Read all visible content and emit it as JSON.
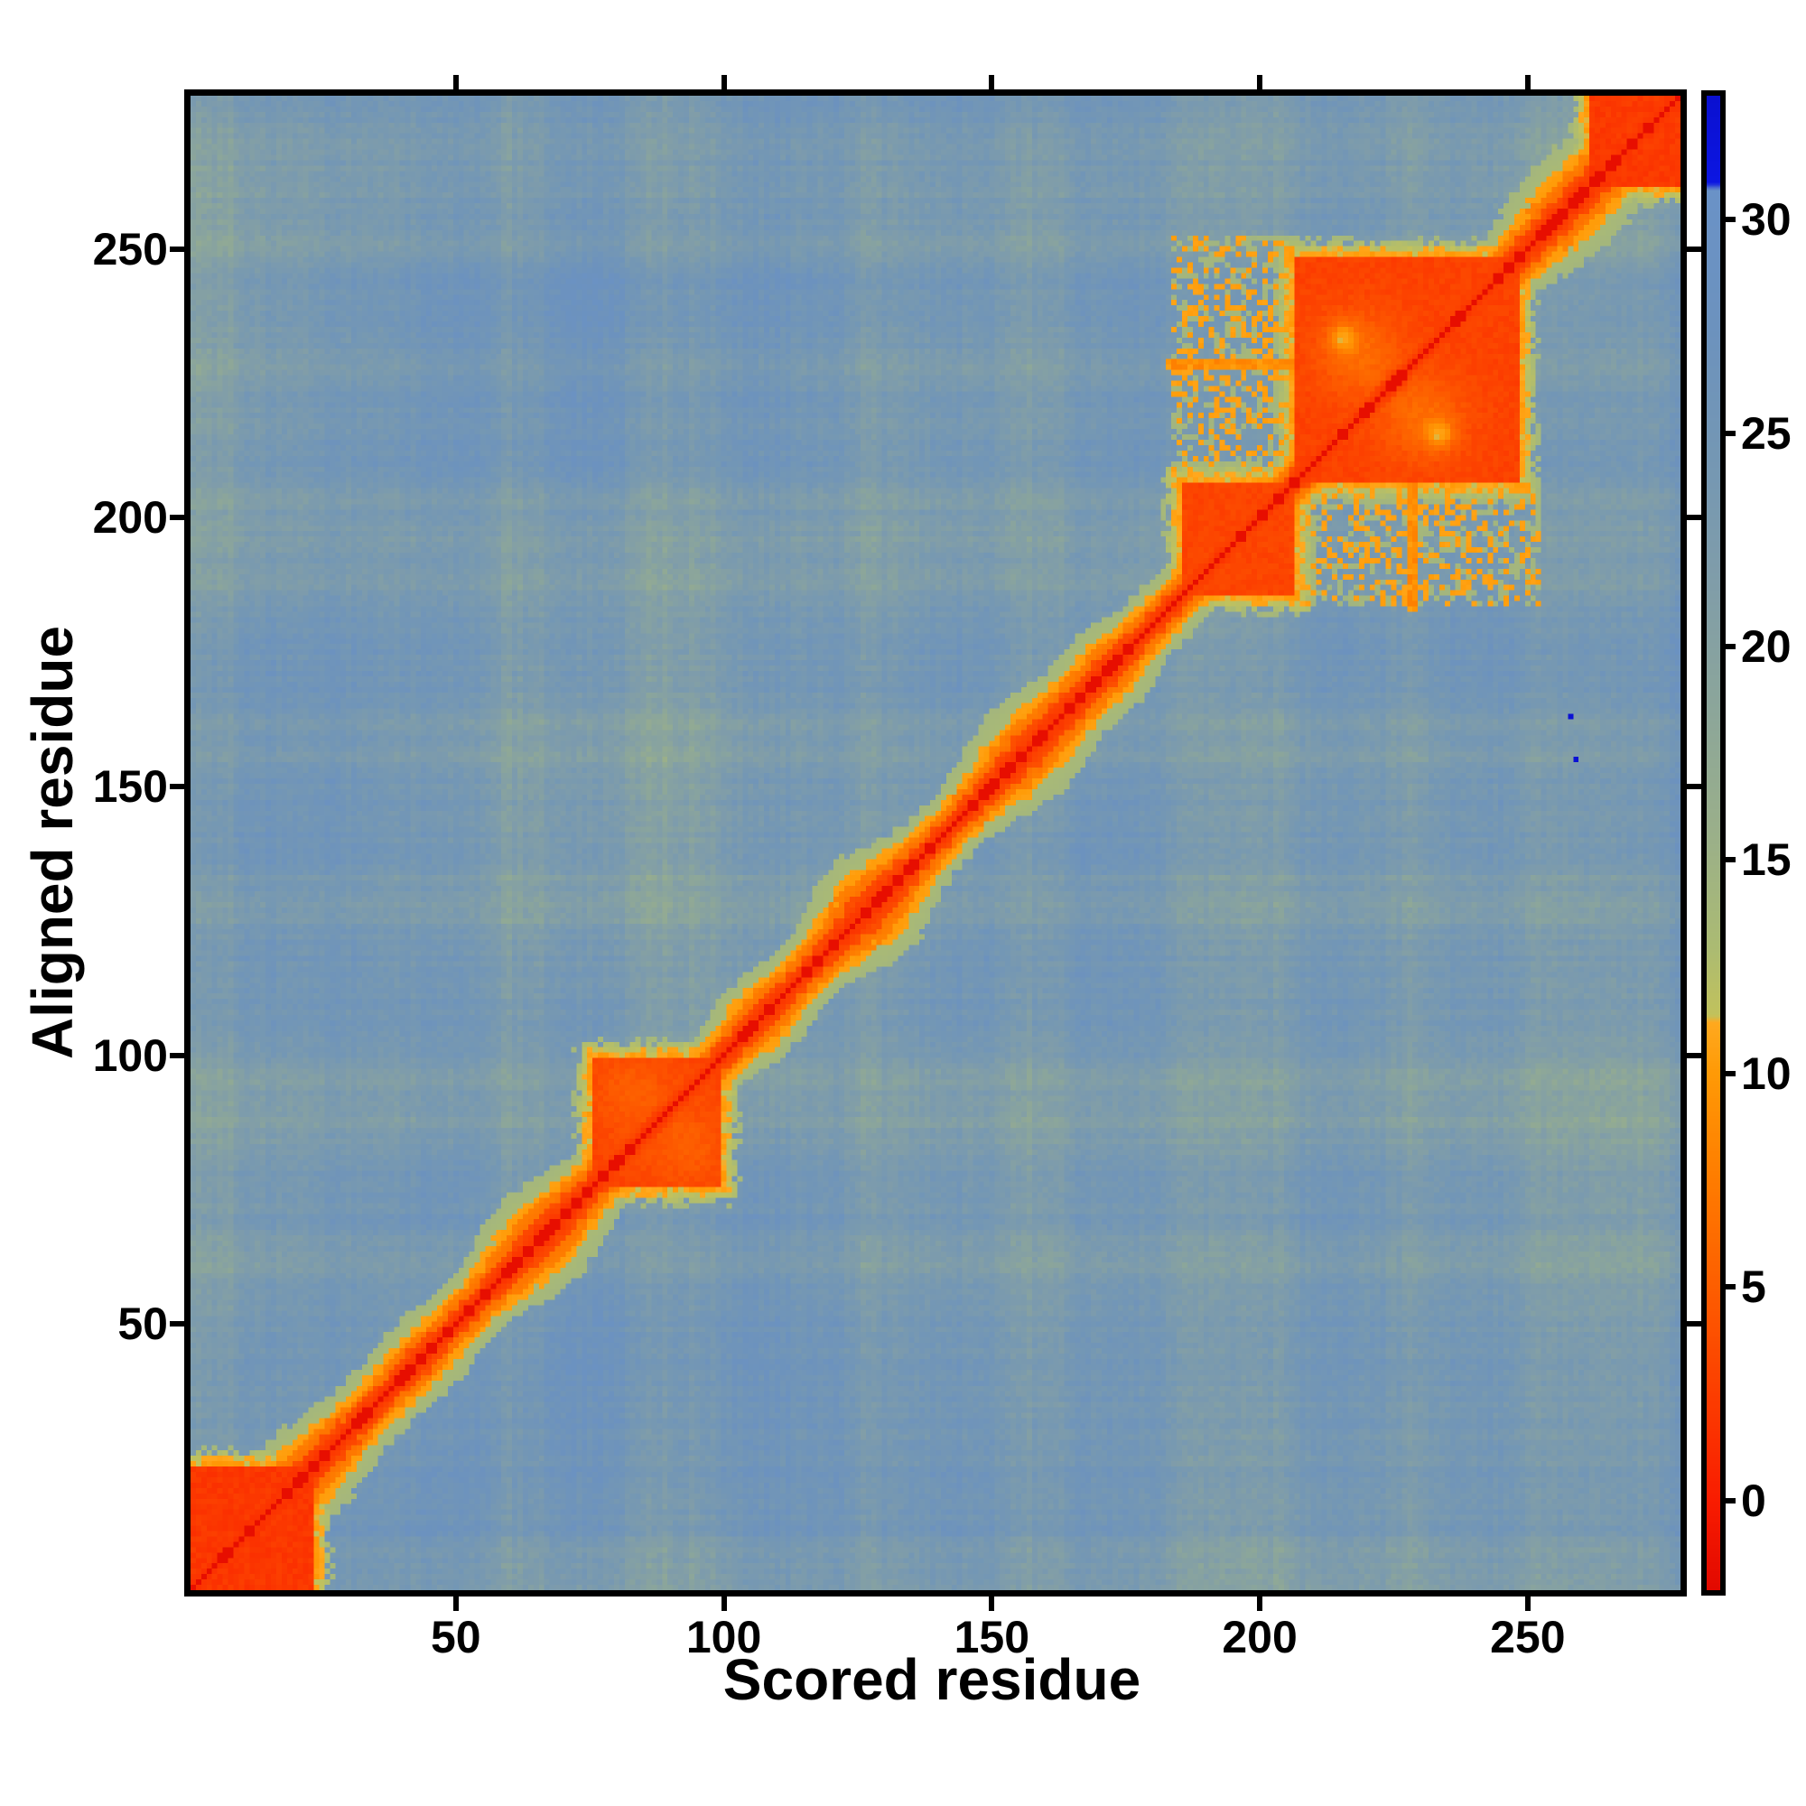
{
  "chart_data": {
    "type": "heatmap",
    "title": "",
    "xlabel": "Scored residue",
    "ylabel": "Aligned residue",
    "n_residues": 278,
    "x_ticks": [
      50,
      100,
      150,
      200,
      250
    ],
    "y_ticks": [
      50,
      100,
      150,
      200,
      250
    ],
    "colorbar_ticks": [
      0,
      5,
      10,
      15,
      20,
      25,
      30
    ],
    "value_range": [
      -2.1,
      32.9
    ],
    "grid": false,
    "legend_position": "right-colorbar",
    "colormap_anchors": [
      [
        -2.1,
        "#e20900"
      ],
      [
        0,
        "#f91c00"
      ],
      [
        2.5,
        "#fc3e00"
      ],
      [
        5,
        "#fd5e00"
      ],
      [
        7.5,
        "#fe7c00"
      ],
      [
        10,
        "#ff9a06"
      ],
      [
        11.2,
        "#ffa91f"
      ],
      [
        11.35,
        "#c2c25c"
      ],
      [
        13,
        "#abbb73"
      ],
      [
        15.5,
        "#9bb089"
      ],
      [
        18.5,
        "#8ca69a"
      ],
      [
        21.5,
        "#809da9"
      ],
      [
        24.5,
        "#7497b4"
      ],
      [
        27.5,
        "#6c92be"
      ],
      [
        30.7,
        "#6a92c7"
      ],
      [
        30.85,
        "#0c16e2"
      ],
      [
        32.9,
        "#0a10d0"
      ]
    ],
    "overflow_threshold": 30.75,
    "overflow_color": "#0c16e2",
    "background_mean": 25.3,
    "diagonal": {
      "core_value": -1.6,
      "base_half_width": 5.5
    },
    "domain_blocks": [
      {
        "start": 1,
        "end": 23,
        "value": 2.0,
        "bumps": []
      },
      {
        "start": 76,
        "end": 99,
        "value": 3.0,
        "bumps": [
          [
            83,
            93,
            2.0,
            25
          ],
          [
            93,
            83,
            2.0,
            25
          ]
        ]
      },
      {
        "start": 186,
        "end": 206,
        "value": 3.0,
        "bumps": []
      },
      {
        "start": 207,
        "end": 248,
        "value": 2.8,
        "bumps": [
          [
            218.5,
            230.5,
            3.4,
            30
          ],
          [
            230.5,
            218.5,
            3.4,
            30
          ],
          [
            215.5,
            233.5,
            6.0,
            3
          ],
          [
            233.5,
            215.5,
            6.0,
            3
          ]
        ]
      },
      {
        "start": 262,
        "end": 278,
        "value": 2.2,
        "bumps": []
      }
    ],
    "band_bumps": [
      {
        "center": 20,
        "half_width": 3.0,
        "sigma": 8
      },
      {
        "center": 44,
        "half_width": 1.5,
        "sigma": 5
      },
      {
        "center": 66,
        "half_width": 3.5,
        "sigma": 6
      },
      {
        "center": 107,
        "half_width": 2.0,
        "sigma": 4
      },
      {
        "center": 127.5,
        "half_width": 4.5,
        "sigma": 5
      },
      {
        "center": 157,
        "half_width": 3.5,
        "sigma": 6
      },
      {
        "center": 172,
        "half_width": 2.0,
        "sigma": 4
      },
      {
        "center": 253,
        "half_width": 1.5,
        "sigma": 5
      },
      {
        "center": 262,
        "half_width": 3.0,
        "sigma": 6
      }
    ],
    "green_streaks": [
      [
        2,
        2.5,
        3.2
      ],
      [
        8,
        2,
        2.2
      ],
      [
        60,
        2,
        2.4
      ],
      [
        65,
        1.5,
        1.8
      ],
      [
        88,
        4,
        3.0
      ],
      [
        96,
        2.5,
        2.2
      ],
      [
        127,
        2.5,
        2.4
      ],
      [
        133,
        1.5,
        1.6
      ],
      [
        156,
        2.5,
        2.4
      ],
      [
        162,
        1.5,
        1.6
      ],
      [
        188,
        3,
        2.8
      ],
      [
        197,
        3,
        2.6
      ],
      [
        204,
        2,
        2.2
      ],
      [
        228,
        2.5,
        2.2
      ],
      [
        252,
        3,
        2.4
      ],
      [
        262,
        4,
        2.4
      ],
      [
        271,
        3,
        2.0
      ]
    ],
    "spur_rows": [
      {
        "row": 228.5,
        "cols": [
          183,
          209
        ]
      }
    ],
    "patchy_regions": [
      {
        "rows": [
          184,
          206
        ],
        "cols": [
          209,
          252
        ]
      }
    ],
    "outlier_cells": [
      {
        "x": 258,
        "y": 163,
        "value": 32.5
      },
      {
        "x": 259,
        "y": 155,
        "value": 32.5
      }
    ]
  }
}
